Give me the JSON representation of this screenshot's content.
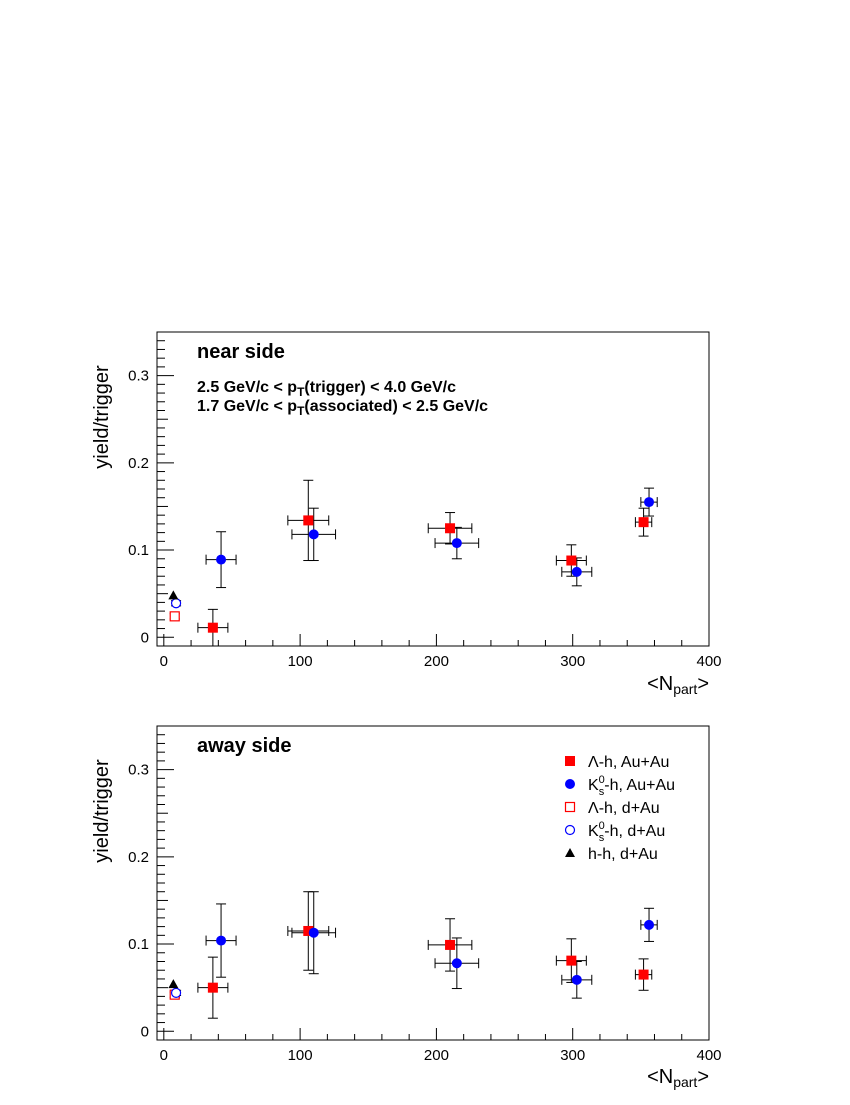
{
  "chart_data": [
    {
      "type": "scatter",
      "title": "near side",
      "annotations": [
        {
          "text": "2.5 GeV/c < p",
          "sub": "T",
          "rest": "(trigger) < 4.0 GeV/c"
        },
        {
          "text": "1.7 GeV/c < p",
          "sub": "T",
          "rest": "(associated) < 2.5 GeV/c"
        }
      ],
      "xlabel": {
        "main": "<N",
        "sub": "part",
        "end": ">"
      },
      "ylabel": "yield/trigger",
      "xlim": [
        -5,
        400
      ],
      "ylim": [
        -0.01,
        0.35
      ],
      "xticks": [
        0,
        100,
        200,
        300,
        400
      ],
      "yticks": [
        0,
        0.1,
        0.2,
        0.3
      ],
      "ytick_labels": [
        "0",
        "0.1",
        "0.2",
        "0.3"
      ],
      "grid": false,
      "series": [
        {
          "key": "lambda_auau",
          "marker": "square-filled",
          "color": "#ff0000",
          "points": [
            {
              "x": 36,
              "y": 0.011,
              "xerr": 11,
              "yerr": 0.021
            },
            {
              "x": 106,
              "y": 0.134,
              "xerr": 15,
              "yerr": 0.046
            },
            {
              "x": 210,
              "y": 0.125,
              "xerr": 16,
              "yerr": 0.018
            },
            {
              "x": 299,
              "y": 0.088,
              "xerr": 11,
              "yerr": 0.018
            },
            {
              "x": 352,
              "y": 0.132,
              "xerr": 6,
              "yerr": 0.016
            }
          ]
        },
        {
          "key": "k0s_auau",
          "marker": "circle-filled",
          "color": "#0000ff",
          "points": [
            {
              "x": 42,
              "y": 0.089,
              "xerr": 11,
              "yerr": 0.032
            },
            {
              "x": 110,
              "y": 0.118,
              "xerr": 16,
              "yerr": 0.03
            },
            {
              "x": 215,
              "y": 0.108,
              "xerr": 16,
              "yerr": 0.018
            },
            {
              "x": 303,
              "y": 0.075,
              "xerr": 11,
              "yerr": 0.016
            },
            {
              "x": 356,
              "y": 0.155,
              "xerr": 6,
              "yerr": 0.016
            }
          ]
        },
        {
          "key": "lambda_dau",
          "marker": "square-open",
          "color": "#ff0000",
          "points": [
            {
              "x": 8,
              "y": 0.024,
              "xerr": 0,
              "yerr": 0.003
            }
          ]
        },
        {
          "key": "k0s_dau",
          "marker": "circle-open",
          "color": "#0000ff",
          "points": [
            {
              "x": 9,
              "y": 0.039,
              "xerr": 0,
              "yerr": 0.003
            }
          ]
        },
        {
          "key": "hh_dau",
          "marker": "triangle-filled",
          "color": "#000000",
          "points": [
            {
              "x": 7,
              "y": 0.048,
              "xerr": 0,
              "yerr": 0
            }
          ]
        }
      ]
    },
    {
      "type": "scatter",
      "title": "away side",
      "xlabel": {
        "main": "<N",
        "sub": "part",
        "end": ">"
      },
      "ylabel": "yield/trigger",
      "xlim": [
        -5,
        400
      ],
      "ylim": [
        -0.01,
        0.35
      ],
      "xticks": [
        0,
        100,
        200,
        300,
        400
      ],
      "yticks": [
        0,
        0.1,
        0.2,
        0.3
      ],
      "ytick_labels": [
        "0",
        "0.1",
        "0.2",
        "0.3"
      ],
      "grid": false,
      "legend_position": "top-right",
      "legend": [
        {
          "key": "lambda_auau",
          "parts": [
            {
              "t": "Λ-h,  Au+Au"
            }
          ]
        },
        {
          "key": "k0s_auau",
          "parts": [
            {
              "t": "K"
            },
            {
              "t": "0",
              "sup": true
            },
            {
              "t": "s",
              "sub": true
            },
            {
              "t": "-h, Au+Au"
            }
          ]
        },
        {
          "key": "lambda_dau",
          "parts": [
            {
              "t": "Λ-h,  d+Au"
            }
          ]
        },
        {
          "key": "k0s_dau",
          "parts": [
            {
              "t": "K"
            },
            {
              "t": "0",
              "sup": true
            },
            {
              "t": "s",
              "sub": true
            },
            {
              "t": "-h, d+Au"
            }
          ]
        },
        {
          "key": "hh_dau",
          "parts": [
            {
              "t": "h-h,   d+Au"
            }
          ]
        }
      ],
      "series": [
        {
          "key": "lambda_auau",
          "marker": "square-filled",
          "color": "#ff0000",
          "points": [
            {
              "x": 36,
              "y": 0.05,
              "xerr": 11,
              "yerr": 0.035
            },
            {
              "x": 106,
              "y": 0.115,
              "xerr": 15,
              "yerr": 0.045
            },
            {
              "x": 210,
              "y": 0.099,
              "xerr": 16,
              "yerr": 0.03
            },
            {
              "x": 299,
              "y": 0.081,
              "xerr": 11,
              "yerr": 0.025
            },
            {
              "x": 352,
              "y": 0.065,
              "xerr": 6,
              "yerr": 0.018
            }
          ]
        },
        {
          "key": "k0s_auau",
          "marker": "circle-filled",
          "color": "#0000ff",
          "points": [
            {
              "x": 42,
              "y": 0.104,
              "xerr": 11,
              "yerr": 0.042
            },
            {
              "x": 110,
              "y": 0.113,
              "xerr": 16,
              "yerr": 0.047
            },
            {
              "x": 215,
              "y": 0.078,
              "xerr": 16,
              "yerr": 0.029
            },
            {
              "x": 303,
              "y": 0.059,
              "xerr": 11,
              "yerr": 0.021
            },
            {
              "x": 356,
              "y": 0.122,
              "xerr": 6,
              "yerr": 0.019
            }
          ]
        },
        {
          "key": "lambda_dau",
          "marker": "square-open",
          "color": "#ff0000",
          "points": [
            {
              "x": 8,
              "y": 0.042,
              "xerr": 0,
              "yerr": 0.003
            }
          ]
        },
        {
          "key": "k0s_dau",
          "marker": "circle-open",
          "color": "#0000ff",
          "points": [
            {
              "x": 9,
              "y": 0.044,
              "xerr": 0,
              "yerr": 0.003
            }
          ]
        },
        {
          "key": "hh_dau",
          "marker": "triangle-filled",
          "color": "#000000",
          "points": [
            {
              "x": 7,
              "y": 0.054,
              "xerr": 0,
              "yerr": 0
            }
          ]
        }
      ]
    }
  ]
}
